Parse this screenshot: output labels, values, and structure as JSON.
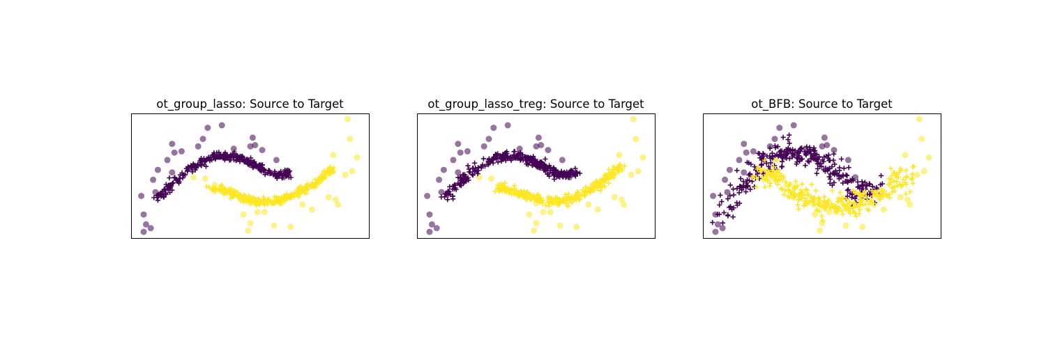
{
  "colors": {
    "class0": "#440154",
    "class1": "#fde725"
  },
  "chart_data": [
    {
      "type": "scatter",
      "title": "ot_group_lasso: Source to Target",
      "xlabel": "",
      "ylabel": "",
      "grid": false,
      "xticks": false,
      "yticks": false,
      "xlim": [
        0,
        1
      ],
      "ylim": [
        0,
        1
      ],
      "source_class0": [
        [
          0.05,
          0.05
        ],
        [
          0.08,
          0.08
        ],
        [
          0.06,
          0.11
        ],
        [
          0.05,
          0.19
        ],
        [
          0.04,
          0.34
        ],
        [
          0.1,
          0.37
        ],
        [
          0.09,
          0.47
        ],
        [
          0.11,
          0.55
        ],
        [
          0.17,
          0.53
        ],
        [
          0.15,
          0.63
        ],
        [
          0.18,
          0.69
        ],
        [
          0.21,
          0.7
        ],
        [
          0.17,
          0.76
        ],
        [
          0.28,
          0.74
        ],
        [
          0.3,
          0.8
        ],
        [
          0.32,
          0.89
        ],
        [
          0.38,
          0.91
        ],
        [
          0.51,
          0.81
        ],
        [
          0.5,
          0.74
        ],
        [
          0.52,
          0.75
        ],
        [
          0.46,
          0.65
        ],
        [
          0.43,
          0.72
        ],
        [
          0.55,
          0.71
        ],
        [
          0.61,
          0.63
        ],
        [
          0.64,
          0.49
        ]
      ],
      "mapped_class0": {
        "x_start": 0.11,
        "x_end": 0.67,
        "peak_y": 0.67,
        "left_y": 0.32,
        "right_y": 0.53,
        "n": 300,
        "spread": 0.016
      },
      "source_class1": [
        [
          0.91,
          0.96
        ],
        [
          0.92,
          0.8
        ],
        [
          0.95,
          0.65
        ],
        [
          0.93,
          0.54
        ],
        [
          0.9,
          0.51
        ],
        [
          0.85,
          0.67
        ],
        [
          0.87,
          0.27
        ],
        [
          0.83,
          0.33
        ],
        [
          0.86,
          0.31
        ],
        [
          0.76,
          0.23
        ],
        [
          0.72,
          0.27
        ],
        [
          0.63,
          0.28
        ],
        [
          0.56,
          0.21
        ],
        [
          0.53,
          0.21
        ],
        [
          0.5,
          0.28
        ],
        [
          0.47,
          0.19
        ],
        [
          0.5,
          0.12
        ],
        [
          0.49,
          0.06
        ],
        [
          0.6,
          0.1
        ],
        [
          0.67,
          0.09
        ],
        [
          0.35,
          0.43
        ],
        [
          0.31,
          0.48
        ],
        [
          0.26,
          0.49
        ],
        [
          0.42,
          0.36
        ]
      ],
      "mapped_class1": {
        "x_start": 0.34,
        "x_end": 0.86,
        "trough_y": 0.3,
        "left_y": 0.4,
        "right_y": 0.58,
        "n": 300,
        "spread": 0.016
      }
    },
    {
      "type": "scatter",
      "title": "ot_group_lasso_treg: Source to Target",
      "xlabel": "",
      "ylabel": "",
      "grid": false,
      "xticks": false,
      "yticks": false,
      "xlim": [
        0,
        1
      ],
      "ylim": [
        0,
        1
      ],
      "source_class0": [
        [
          0.05,
          0.05
        ],
        [
          0.08,
          0.08
        ],
        [
          0.06,
          0.11
        ],
        [
          0.05,
          0.19
        ],
        [
          0.04,
          0.34
        ],
        [
          0.1,
          0.37
        ],
        [
          0.09,
          0.47
        ],
        [
          0.11,
          0.55
        ],
        [
          0.17,
          0.53
        ],
        [
          0.15,
          0.63
        ],
        [
          0.18,
          0.69
        ],
        [
          0.21,
          0.7
        ],
        [
          0.17,
          0.76
        ],
        [
          0.28,
          0.74
        ],
        [
          0.3,
          0.8
        ],
        [
          0.32,
          0.89
        ],
        [
          0.38,
          0.91
        ],
        [
          0.51,
          0.81
        ],
        [
          0.5,
          0.74
        ],
        [
          0.52,
          0.75
        ],
        [
          0.46,
          0.65
        ],
        [
          0.43,
          0.72
        ],
        [
          0.55,
          0.71
        ],
        [
          0.61,
          0.63
        ],
        [
          0.64,
          0.49
        ]
      ],
      "mapped_class0": {
        "x_start": 0.11,
        "x_end": 0.67,
        "peak_y": 0.67,
        "left_y": 0.32,
        "right_y": 0.53,
        "n": 300,
        "spread": 0.018
      },
      "source_class1": [
        [
          0.91,
          0.96
        ],
        [
          0.92,
          0.8
        ],
        [
          0.95,
          0.65
        ],
        [
          0.93,
          0.54
        ],
        [
          0.9,
          0.51
        ],
        [
          0.85,
          0.67
        ],
        [
          0.87,
          0.27
        ],
        [
          0.83,
          0.33
        ],
        [
          0.86,
          0.31
        ],
        [
          0.76,
          0.23
        ],
        [
          0.72,
          0.27
        ],
        [
          0.63,
          0.28
        ],
        [
          0.56,
          0.21
        ],
        [
          0.53,
          0.21
        ],
        [
          0.5,
          0.28
        ],
        [
          0.47,
          0.19
        ],
        [
          0.5,
          0.12
        ],
        [
          0.49,
          0.06
        ],
        [
          0.6,
          0.1
        ],
        [
          0.67,
          0.09
        ],
        [
          0.35,
          0.43
        ],
        [
          0.31,
          0.48
        ],
        [
          0.26,
          0.49
        ],
        [
          0.42,
          0.36
        ]
      ],
      "mapped_class1": {
        "x_start": 0.34,
        "x_end": 0.86,
        "trough_y": 0.3,
        "left_y": 0.4,
        "right_y": 0.58,
        "n": 300,
        "spread": 0.018
      }
    },
    {
      "type": "scatter",
      "title": "ot_BFB: Source to Target",
      "xlabel": "",
      "ylabel": "",
      "grid": false,
      "xticks": false,
      "yticks": false,
      "xlim": [
        0,
        1
      ],
      "ylim": [
        0,
        1
      ],
      "source_class0": [
        [
          0.05,
          0.05
        ],
        [
          0.08,
          0.08
        ],
        [
          0.06,
          0.11
        ],
        [
          0.05,
          0.19
        ],
        [
          0.04,
          0.34
        ],
        [
          0.1,
          0.37
        ],
        [
          0.09,
          0.47
        ],
        [
          0.11,
          0.55
        ],
        [
          0.17,
          0.53
        ],
        [
          0.15,
          0.63
        ],
        [
          0.18,
          0.69
        ],
        [
          0.21,
          0.7
        ],
        [
          0.17,
          0.76
        ],
        [
          0.28,
          0.74
        ],
        [
          0.3,
          0.8
        ],
        [
          0.32,
          0.89
        ],
        [
          0.38,
          0.91
        ],
        [
          0.51,
          0.81
        ],
        [
          0.5,
          0.74
        ],
        [
          0.52,
          0.75
        ],
        [
          0.46,
          0.65
        ],
        [
          0.43,
          0.72
        ],
        [
          0.55,
          0.71
        ],
        [
          0.61,
          0.63
        ],
        [
          0.64,
          0.49
        ]
      ],
      "mapped_class0": {
        "x_start": 0.07,
        "x_end": 0.72,
        "peak_y": 0.71,
        "left_y": 0.18,
        "right_y": 0.4,
        "n": 300,
        "spread": 0.045
      },
      "source_class1": [
        [
          0.91,
          0.96
        ],
        [
          0.92,
          0.8
        ],
        [
          0.95,
          0.65
        ],
        [
          0.93,
          0.54
        ],
        [
          0.9,
          0.51
        ],
        [
          0.85,
          0.67
        ],
        [
          0.87,
          0.27
        ],
        [
          0.83,
          0.33
        ],
        [
          0.86,
          0.31
        ],
        [
          0.76,
          0.23
        ],
        [
          0.72,
          0.27
        ],
        [
          0.63,
          0.28
        ],
        [
          0.56,
          0.21
        ],
        [
          0.53,
          0.21
        ],
        [
          0.5,
          0.28
        ],
        [
          0.47,
          0.19
        ],
        [
          0.5,
          0.12
        ],
        [
          0.49,
          0.06
        ],
        [
          0.6,
          0.1
        ],
        [
          0.67,
          0.09
        ],
        [
          0.35,
          0.43
        ],
        [
          0.31,
          0.48
        ],
        [
          0.26,
          0.49
        ],
        [
          0.42,
          0.36
        ]
      ],
      "mapped_class1": {
        "x_start": 0.24,
        "x_end": 0.88,
        "trough_y": 0.25,
        "left_y": 0.52,
        "right_y": 0.56,
        "n": 300,
        "spread": 0.045
      }
    }
  ]
}
